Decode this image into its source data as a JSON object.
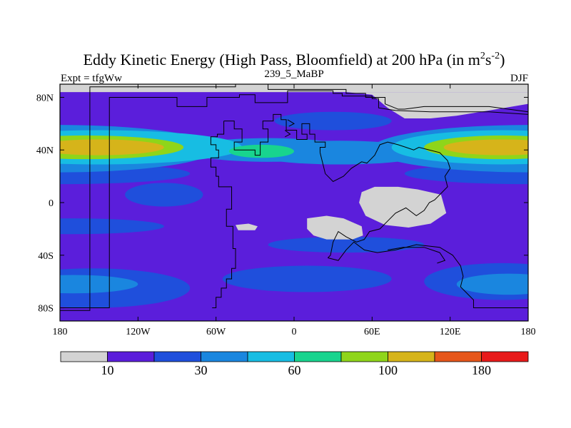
{
  "chart_data": {
    "type": "heatmap",
    "title_main": "Eddy Kinetic Energy (High Pass, Bloomfield) at 200 hPa (in m",
    "title_sup1": "2",
    "title_mid": "s",
    "title_sup2": "-2",
    "title_end": ")",
    "left_label": "Expt = tfgWw",
    "center_label": "239_5_MaBP",
    "right_label": "DJF",
    "x_ticks": [
      {
        "value": -180,
        "label": "180"
      },
      {
        "value": -120,
        "label": "120W"
      },
      {
        "value": -60,
        "label": "60W"
      },
      {
        "value": 0,
        "label": "0"
      },
      {
        "value": 60,
        "label": "60E"
      },
      {
        "value": 120,
        "label": "120E"
      },
      {
        "value": 180,
        "label": "180"
      }
    ],
    "y_ticks": [
      {
        "value": 80,
        "label": "80N"
      },
      {
        "value": 40,
        "label": "40N"
      },
      {
        "value": 0,
        "label": "0"
      },
      {
        "value": -40,
        "label": "40S"
      },
      {
        "value": -80,
        "label": "80S"
      }
    ],
    "xlim": [
      -180,
      180
    ],
    "ylim": [
      -90,
      90
    ],
    "units": "m2 s-2",
    "colorbar": {
      "colors": [
        "#d3d3d3",
        "#5b1edb",
        "#1f4fdc",
        "#1a86df",
        "#17bde3",
        "#18d48e",
        "#8fd51a",
        "#d6b41a",
        "#e6561a",
        "#e81a1a"
      ],
      "boundaries": [
        10,
        20,
        30,
        45,
        60,
        80,
        100,
        140,
        180
      ],
      "labels": [
        {
          "boundary": 1,
          "label": "10"
        },
        {
          "boundary": 3,
          "label": "30"
        },
        {
          "boundary": 5,
          "label": "60"
        },
        {
          "boundary": 7,
          "label": "100"
        },
        {
          "boundary": 9,
          "label": "180"
        }
      ]
    },
    "field_blobs": [
      {
        "lon": -180,
        "lat": 41,
        "rlon": 120,
        "rlat": 18,
        "level": 3
      },
      {
        "lon": -150,
        "lat": 42,
        "rlon": 110,
        "rlat": 13,
        "level": 4
      },
      {
        "lon": -160,
        "lat": 42,
        "rlon": 75,
        "rlat": 9,
        "level": 6
      },
      {
        "lon": -150,
        "lat": 42,
        "rlon": 50,
        "rlat": 6,
        "level": 7
      },
      {
        "lon": -20,
        "lat": 40,
        "rlon": 65,
        "rlat": 9,
        "level": 3
      },
      {
        "lon": -25,
        "lat": 39,
        "rlon": 25,
        "rlat": 5,
        "level": 5
      },
      {
        "lon": 35,
        "lat": 38,
        "rlon": 70,
        "rlat": 9,
        "level": 3
      },
      {
        "lon": 180,
        "lat": 41,
        "rlon": 120,
        "rlat": 18,
        "level": 3
      },
      {
        "lon": 160,
        "lat": 42,
        "rlon": 85,
        "rlat": 13,
        "level": 4
      },
      {
        "lon": 160,
        "lat": 42,
        "rlon": 60,
        "rlat": 9,
        "level": 6
      },
      {
        "lon": 160,
        "lat": 42,
        "rlon": 45,
        "rlat": 6,
        "level": 7
      },
      {
        "lon": -180,
        "lat": 22,
        "rlon": 100,
        "rlat": 8,
        "level": 2
      },
      {
        "lon": 180,
        "lat": 22,
        "rlon": 95,
        "rlat": 8,
        "level": 2
      },
      {
        "lon": -170,
        "lat": -18,
        "rlon": 70,
        "rlat": 6,
        "level": 2
      },
      {
        "lon": -155,
        "lat": -65,
        "rlon": 75,
        "rlat": 15,
        "level": 2
      },
      {
        "lon": -170,
        "lat": -62,
        "rlon": 50,
        "rlat": 7,
        "level": 3
      },
      {
        "lon": 10,
        "lat": -58,
        "rlon": 65,
        "rlat": 10,
        "level": 2
      },
      {
        "lon": 160,
        "lat": -60,
        "rlon": 60,
        "rlat": 14,
        "level": 2
      },
      {
        "lon": 165,
        "lat": -62,
        "rlon": 40,
        "rlat": 8,
        "level": 3
      },
      {
        "lon": -100,
        "lat": 6,
        "rlon": 30,
        "rlat": 9,
        "level": 2
      },
      {
        "lon": 40,
        "lat": -32,
        "rlon": 60,
        "rlat": 6,
        "level": 2
      },
      {
        "lon": 30,
        "lat": 62,
        "rlon": 45,
        "rlat": 7,
        "level": 2
      }
    ],
    "low_regions": [
      [
        [
          -180,
          90
        ],
        [
          180,
          90
        ],
        [
          180,
          84
        ],
        [
          -180,
          84
        ]
      ],
      [
        [
          40,
          84
        ],
        [
          60,
          82
        ],
        [
          72,
          72
        ],
        [
          85,
          64
        ],
        [
          105,
          64
        ],
        [
          125,
          66
        ],
        [
          150,
          70
        ],
        [
          180,
          75
        ],
        [
          180,
          84
        ],
        [
          40,
          84
        ]
      ],
      [
        [
          52,
          8
        ],
        [
          62,
          12
        ],
        [
          80,
          12
        ],
        [
          95,
          10
        ],
        [
          113,
          6
        ],
        [
          117,
          -8
        ],
        [
          105,
          -16
        ],
        [
          88,
          -19
        ],
        [
          70,
          -17
        ],
        [
          55,
          -10
        ],
        [
          50,
          0
        ]
      ],
      [
        [
          10,
          -12
        ],
        [
          25,
          -10
        ],
        [
          38,
          -12
        ],
        [
          52,
          -18
        ],
        [
          53,
          -25
        ],
        [
          45,
          -28
        ],
        [
          25,
          -28
        ],
        [
          15,
          -25
        ],
        [
          10,
          -20
        ]
      ],
      [
        [
          -45,
          -17
        ],
        [
          -35,
          -16
        ],
        [
          -28,
          -18
        ],
        [
          -30,
          -21
        ],
        [
          -43,
          -21
        ]
      ]
    ],
    "coastlines": [
      [
        [
          -180,
          -80
        ],
        [
          -142,
          -80
        ],
        [
          -142,
          80
        ],
        [
          -90,
          80
        ],
        [
          -90,
          73
        ],
        [
          -67,
          73
        ],
        [
          -67,
          80
        ],
        [
          -42,
          80
        ],
        [
          -42,
          82
        ],
        [
          -30,
          82
        ],
        [
          -30,
          76
        ],
        [
          -5,
          76
        ],
        [
          -5,
          85
        ],
        [
          30,
          85
        ],
        [
          30,
          83
        ],
        [
          37,
          83
        ],
        [
          37,
          81
        ],
        [
          60,
          81
        ],
        [
          60,
          79
        ],
        [
          65,
          79
        ],
        [
          65,
          72
        ],
        [
          78,
          70
        ],
        [
          105,
          69
        ],
        [
          150,
          69
        ],
        [
          180,
          67
        ]
      ],
      [
        [
          -180,
          -82
        ],
        [
          -157,
          -82
        ],
        [
          -157,
          88
        ],
        [
          -45,
          88
        ],
        [
          -45,
          91
        ],
        [
          -20,
          91
        ],
        [
          -20,
          86
        ],
        [
          40,
          86
        ],
        [
          40,
          83
        ],
        [
          55,
          83
        ],
        [
          55,
          80
        ],
        [
          70,
          80
        ],
        [
          70,
          75
        ],
        [
          80,
          71
        ],
        [
          85,
          71
        ],
        [
          100,
          73
        ],
        [
          150,
          73
        ],
        [
          180,
          69
        ]
      ],
      [
        [
          -54,
          62
        ],
        [
          -54,
          52
        ],
        [
          -59,
          52
        ],
        [
          -59,
          50
        ],
        [
          -64,
          50
        ],
        [
          -64,
          44
        ],
        [
          -60,
          44
        ],
        [
          -60,
          40
        ],
        [
          -58,
          40
        ],
        [
          -58,
          34
        ],
        [
          -64,
          34
        ],
        [
          -64,
          27
        ],
        [
          -60,
          27
        ],
        [
          -60,
          20
        ],
        [
          -58,
          20
        ],
        [
          -58,
          12
        ],
        [
          -48,
          12
        ],
        [
          -48,
          -5
        ],
        [
          -52,
          -5
        ],
        [
          -52,
          -18
        ],
        [
          -47,
          -18
        ],
        [
          -47,
          -35
        ],
        [
          -45,
          -35
        ],
        [
          -45,
          -50
        ],
        [
          -48,
          -50
        ],
        [
          -48,
          -58
        ],
        [
          -52,
          -58
        ],
        [
          -52,
          -65
        ],
        [
          -56,
          -65
        ],
        [
          -56,
          -72
        ],
        [
          -60,
          -72
        ],
        [
          -60,
          -80
        ],
        [
          -63,
          -80
        ]
      ],
      [
        [
          -54,
          62
        ],
        [
          -46,
          62
        ],
        [
          -46,
          56
        ],
        [
          -40,
          56
        ],
        [
          -40,
          46
        ],
        [
          -46,
          46
        ],
        [
          -46,
          40
        ],
        [
          -30,
          40
        ],
        [
          -30,
          36
        ],
        [
          -26,
          36
        ],
        [
          -26,
          46
        ],
        [
          -20,
          46
        ],
        [
          -20,
          56
        ],
        [
          -24,
          56
        ],
        [
          -24,
          62
        ],
        [
          -16,
          62
        ],
        [
          -16,
          67
        ],
        [
          -10,
          67
        ],
        [
          -10,
          63
        ],
        [
          -6,
          63
        ],
        [
          -6,
          55
        ],
        [
          2,
          55
        ],
        [
          2,
          48
        ],
        [
          10,
          48
        ],
        [
          10,
          52
        ],
        [
          6,
          52
        ],
        [
          6,
          60
        ],
        [
          12,
          60
        ],
        [
          12,
          52
        ],
        [
          16,
          52
        ],
        [
          16,
          46
        ],
        [
          24,
          46
        ],
        [
          24,
          42
        ],
        [
          20,
          42
        ],
        [
          20,
          38
        ]
      ],
      [
        [
          20,
          38
        ],
        [
          22,
          30
        ],
        [
          24,
          22
        ],
        [
          30,
          16
        ],
        [
          38,
          20
        ],
        [
          44,
          26
        ],
        [
          52,
          31
        ],
        [
          56,
          30
        ],
        [
          62,
          36
        ],
        [
          66,
          44
        ],
        [
          72,
          46
        ],
        [
          80,
          44
        ],
        [
          86,
          42
        ],
        [
          92,
          40
        ],
        [
          96,
          42
        ],
        [
          104,
          40
        ],
        [
          112,
          38
        ],
        [
          118,
          32
        ],
        [
          120,
          26
        ],
        [
          116,
          20
        ],
        [
          118,
          12
        ],
        [
          114,
          8
        ],
        [
          108,
          2
        ],
        [
          104,
          0
        ],
        [
          100,
          -6
        ],
        [
          94,
          -10
        ],
        [
          86,
          -4
        ],
        [
          78,
          -8
        ],
        [
          72,
          -14
        ],
        [
          66,
          -20
        ],
        [
          58,
          -22
        ],
        [
          54,
          -28
        ],
        [
          48,
          -30
        ],
        [
          40,
          -26
        ],
        [
          34,
          -22
        ],
        [
          30,
          -30
        ],
        [
          28,
          -40
        ],
        [
          26,
          -42
        ]
      ],
      [
        [
          26,
          -42
        ],
        [
          34,
          -44
        ],
        [
          40,
          -36
        ],
        [
          46,
          -30
        ],
        [
          54,
          -36
        ],
        [
          64,
          -38
        ],
        [
          78,
          -36
        ],
        [
          94,
          -32
        ],
        [
          112,
          -34
        ],
        [
          122,
          -40
        ],
        [
          128,
          -48
        ],
        [
          130,
          -56
        ],
        [
          128,
          -64
        ],
        [
          134,
          -70
        ],
        [
          138,
          -74
        ],
        [
          138,
          -80
        ],
        [
          180,
          -80
        ]
      ],
      [
        [
          72,
          -36
        ],
        [
          84,
          -34
        ],
        [
          100,
          -34
        ],
        [
          112,
          -38
        ],
        [
          116,
          -44
        ],
        [
          110,
          -46
        ]
      ],
      [
        [
          -5,
          63
        ],
        [
          0,
          60
        ],
        [
          -4,
          58
        ]
      ],
      [
        [
          -7,
          55
        ],
        [
          -3,
          52
        ],
        [
          -7,
          50
        ]
      ]
    ]
  }
}
